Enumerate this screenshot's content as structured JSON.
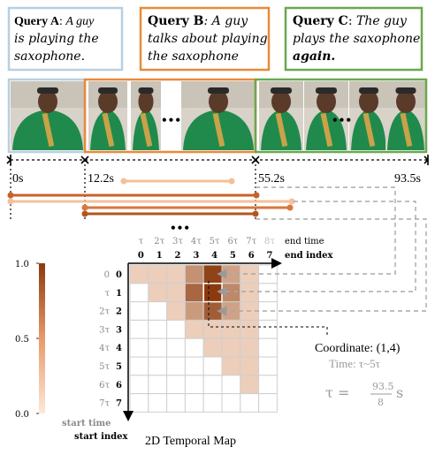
{
  "queries": [
    {
      "label": "Query A",
      "sep": ":",
      "text_lines": [
        "A guy",
        "is playing the",
        "saxophone."
      ],
      "color": "#b8cfe0"
    },
    {
      "label": "Query B",
      "sep": ":",
      "text_lines": [
        "A guy",
        "talks about playing",
        "the saxophone"
      ],
      "color": "#e88a3a"
    },
    {
      "label": "Query C",
      "sep": ":",
      "text_lines": [
        "The guy",
        "plays the saxophone",
        "again."
      ],
      "color": "#6aa84f"
    }
  ],
  "timeline": {
    "ellipsis": "•••",
    "times": [
      "0s",
      "12.2s",
      "55.2s",
      "93.5s"
    ]
  },
  "proposal_ellipsis": "•••",
  "axes": {
    "end_time_label": "end time",
    "end_index_label": "end index",
    "start_time_label": "start time",
    "start_index_label": "start index",
    "top_time": [
      "τ",
      "2τ",
      "3τ",
      "4τ",
      "5τ",
      "6τ",
      "7τ",
      "8τ"
    ],
    "top_index": [
      "0",
      "1",
      "2",
      "3",
      "4",
      "5",
      "6",
      "7"
    ],
    "left_time": [
      "0",
      "τ",
      "2τ",
      "3τ",
      "4τ",
      "5τ",
      "6τ",
      "7τ"
    ],
    "left_index": [
      "0",
      "1",
      "2",
      "3",
      "4",
      "5",
      "6",
      "7"
    ]
  },
  "colorbar": {
    "max": "1.0",
    "mid": "0.5",
    "min": "0.0",
    "color_high": "#8b3a0e",
    "color_low": "#fde8d8"
  },
  "annotation": {
    "coordinate": "Coordinate: (1,4)",
    "time": "Time: τ~5τ",
    "tau_prefix": "τ =",
    "tau_num": "93.5",
    "tau_den": "8",
    "tau_unit": "s"
  },
  "map_title": "2D Temporal Map",
  "heatmap": {
    "highlight_cell": [
      1,
      4
    ],
    "values": [
      [
        0.15,
        0.15,
        0.15,
        0.5,
        0.95,
        0.4,
        0.15,
        0.0
      ],
      [
        null,
        0.15,
        0.15,
        0.75,
        1.0,
        0.55,
        0.15,
        0.0
      ],
      [
        null,
        null,
        0.15,
        0.45,
        0.8,
        0.4,
        0.15,
        0.0
      ],
      [
        null,
        null,
        null,
        0.15,
        0.15,
        0.15,
        0.15,
        0.0
      ],
      [
        null,
        null,
        null,
        null,
        0.15,
        0.15,
        0.15,
        0.0
      ],
      [
        null,
        null,
        null,
        null,
        null,
        0.15,
        0.15,
        0.0
      ],
      [
        null,
        null,
        null,
        null,
        null,
        null,
        0.15,
        0.0
      ],
      [
        null,
        null,
        null,
        null,
        null,
        null,
        null,
        0.0
      ]
    ]
  }
}
